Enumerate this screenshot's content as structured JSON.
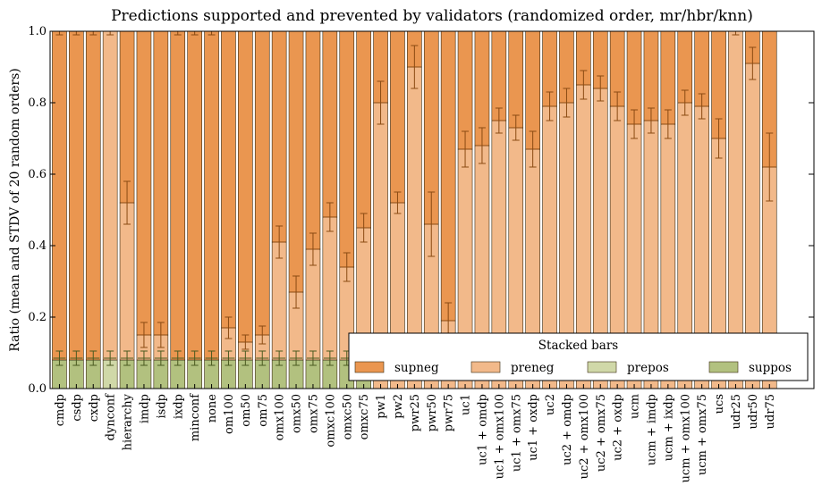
{
  "chart_data": {
    "type": "bar",
    "stacked": true,
    "title": "Predictions supported and prevented by validators (randomized order, mr/hbr/knn)",
    "xlabel": "",
    "ylabel": "Ratio (mean and STDV of 20 random orders)",
    "ylim": [
      0,
      1.0
    ],
    "yticks": [
      "0.0",
      "0.2",
      "0.4",
      "0.6",
      "0.8",
      "1.0"
    ],
    "grid": false,
    "legend": {
      "title": "Stacked bars",
      "placement": "lower-right",
      "columns": 4
    },
    "categories": [
      "cmdp",
      "csdp",
      "cxdp",
      "dynconf",
      "hierarchy",
      "imdp",
      "isdp",
      "ixdp",
      "minconf",
      "none",
      "om100",
      "om50",
      "om75",
      "omx100",
      "omx50",
      "omx75",
      "omxc100",
      "omxc50",
      "omxc75",
      "pw1",
      "pw2",
      "pwr25",
      "pwr50",
      "pwr75",
      "uc1",
      "uc1 + omdp",
      "uc1 + omx100",
      "uc1 + omx75",
      "uc1 + oxdp",
      "uc2",
      "uc2 + omdp",
      "uc2 + omx100",
      "uc2 + omx75",
      "uc2 + oxdp",
      "ucm",
      "ucm + imdp",
      "ucm + ixdp",
      "ucm + omx100",
      "ucm + omx75",
      "ucs",
      "udr25",
      "udr50",
      "udr75"
    ],
    "series": [
      {
        "name": "suppos",
        "color": "#b2c17f",
        "values": [
          0.08,
          0.08,
          0.08,
          0,
          0.08,
          0.08,
          0.08,
          0.08,
          0.08,
          0.08,
          0.08,
          0.08,
          0.08,
          0.08,
          0.08,
          0.08,
          0.08,
          0.08,
          0.08,
          0,
          0,
          0,
          0,
          0,
          0,
          0,
          0,
          0,
          0,
          0,
          0,
          0,
          0,
          0,
          0,
          0,
          0,
          0,
          0,
          0,
          0,
          0,
          0
        ]
      },
      {
        "name": "prepos",
        "color": "#d0d8a8",
        "values": [
          0,
          0,
          0,
          0.08,
          0,
          0,
          0,
          0,
          0,
          0,
          0,
          0,
          0,
          0,
          0,
          0,
          0,
          0,
          0,
          0,
          0,
          0,
          0,
          0,
          0,
          0,
          0,
          0,
          0,
          0,
          0,
          0,
          0,
          0,
          0,
          0,
          0,
          0,
          0,
          0,
          0,
          0,
          0
        ]
      },
      {
        "name": "preneg",
        "color": "#f2b98a",
        "values": [
          0,
          0,
          0,
          0.92,
          0.44,
          0.07,
          0.07,
          0,
          0,
          0,
          0.09,
          0.05,
          0.07,
          0.33,
          0.19,
          0.31,
          0.4,
          0.26,
          0.37,
          0.8,
          0.52,
          0.9,
          0.46,
          0.19,
          0.67,
          0.68,
          0.75,
          0.73,
          0.67,
          0.79,
          0.8,
          0.85,
          0.84,
          0.79,
          0.74,
          0.75,
          0.74,
          0.8,
          0.79,
          0.7,
          1.0,
          0.91,
          0.62
        ]
      },
      {
        "name": "supneg",
        "color": "#ea9650",
        "values": [
          0.92,
          0.92,
          0.92,
          0,
          0.48,
          0.85,
          0.85,
          0.92,
          0.92,
          0.92,
          0.83,
          0.87,
          0.85,
          0.59,
          0.73,
          0.61,
          0.52,
          0.66,
          0.55,
          0.2,
          0.48,
          0.1,
          0.54,
          0.81,
          0.33,
          0.32,
          0.25,
          0.27,
          0.33,
          0.21,
          0.2,
          0.15,
          0.16,
          0.21,
          0.26,
          0.25,
          0.26,
          0.2,
          0.21,
          0.3,
          0,
          0.09,
          0.38
        ]
      }
    ],
    "error_bars": {
      "preneg_top": [
        [
          1.0,
          0.01
        ],
        [
          1.0,
          0.01
        ],
        [
          1.0,
          0.01
        ],
        [
          1.0,
          0.01
        ],
        [
          0.52,
          0.06
        ],
        [
          0.15,
          0.035
        ],
        [
          0.15,
          0.035
        ],
        [
          1.0,
          0.01
        ],
        [
          1.0,
          0.01
        ],
        [
          1.0,
          0.01
        ],
        [
          0.17,
          0.03
        ],
        [
          0.13,
          0.02
        ],
        [
          0.15,
          0.025
        ],
        [
          0.41,
          0.045
        ],
        [
          0.27,
          0.045
        ],
        [
          0.39,
          0.045
        ],
        [
          0.48,
          0.04
        ],
        [
          0.34,
          0.04
        ],
        [
          0.45,
          0.04
        ],
        [
          0.8,
          0.06
        ],
        [
          0.52,
          0.03
        ],
        [
          0.9,
          0.06
        ],
        [
          0.46,
          0.09
        ],
        [
          0.19,
          0.05
        ],
        [
          0.67,
          0.05
        ],
        [
          0.68,
          0.05
        ],
        [
          0.75,
          0.035
        ],
        [
          0.73,
          0.035
        ],
        [
          0.67,
          0.05
        ],
        [
          0.79,
          0.04
        ],
        [
          0.8,
          0.04
        ],
        [
          0.85,
          0.04
        ],
        [
          0.84,
          0.035
        ],
        [
          0.79,
          0.04
        ],
        [
          0.74,
          0.04
        ],
        [
          0.75,
          0.035
        ],
        [
          0.74,
          0.04
        ],
        [
          0.8,
          0.035
        ],
        [
          0.79,
          0.035
        ],
        [
          0.7,
          0.055
        ],
        [
          1.0,
          0.01
        ],
        [
          0.91,
          0.045
        ],
        [
          0.62,
          0.095
        ]
      ],
      "pos_top": [
        0.085,
        0.085,
        0.085,
        0.085,
        0.085,
        0.085,
        0.085,
        0.085,
        0.085,
        0.085,
        0.085,
        0.085,
        0.085,
        0.085,
        0.085,
        0.085,
        0.085,
        0.085,
        0.085,
        null,
        null,
        null,
        null,
        null,
        null,
        null,
        null,
        null,
        null,
        null,
        null,
        null,
        null,
        null,
        null,
        null,
        null,
        null,
        null,
        null,
        null,
        null,
        null
      ],
      "pos_err": 0.02
    }
  }
}
